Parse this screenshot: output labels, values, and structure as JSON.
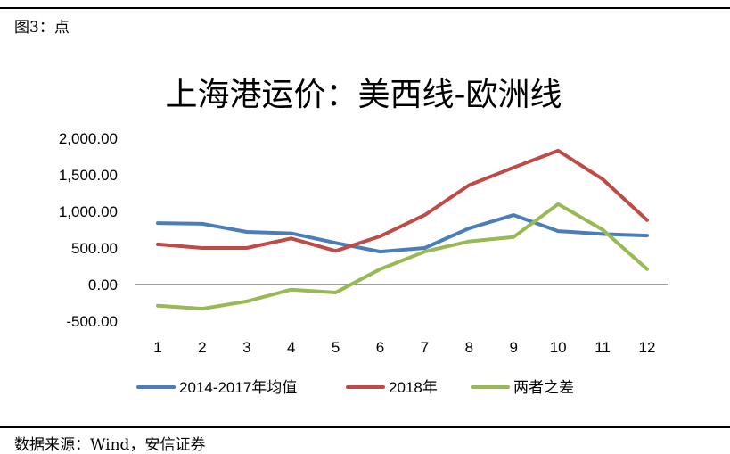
{
  "figure_label": "图3：点",
  "source": "数据来源：Wind，安信证券",
  "chart_data": {
    "type": "line",
    "title": "上海港运价：美西线-欧洲线",
    "x": [
      1,
      2,
      3,
      4,
      5,
      6,
      7,
      8,
      9,
      10,
      11,
      12
    ],
    "x_tick_labels": [
      "1",
      "2",
      "3",
      "4",
      "5",
      "6",
      "7",
      "8",
      "9",
      "10",
      "11",
      "12"
    ],
    "ylim": [
      -500,
      2000
    ],
    "y_ticks": [
      -500,
      0,
      500,
      1000,
      1500,
      2000
    ],
    "y_tick_labels": [
      "-500.00",
      "0.00",
      "500.00",
      "1,000.00",
      "1,500.00",
      "2,000.00"
    ],
    "grid": false,
    "legend_position": "bottom",
    "series": [
      {
        "name": "2014-2017年均值",
        "color": "#4a7ebb",
        "values": [
          840,
          830,
          720,
          700,
          570,
          450,
          500,
          770,
          950,
          730,
          690,
          670
        ]
      },
      {
        "name": "2018年",
        "color": "#be4b48",
        "values": [
          550,
          500,
          500,
          630,
          460,
          660,
          950,
          1360,
          1600,
          1830,
          1440,
          880
        ]
      },
      {
        "name": "两者之差",
        "color": "#98b954",
        "values": [
          -290,
          -330,
          -230,
          -70,
          -110,
          210,
          450,
          590,
          650,
          1100,
          750,
          210
        ]
      }
    ]
  }
}
